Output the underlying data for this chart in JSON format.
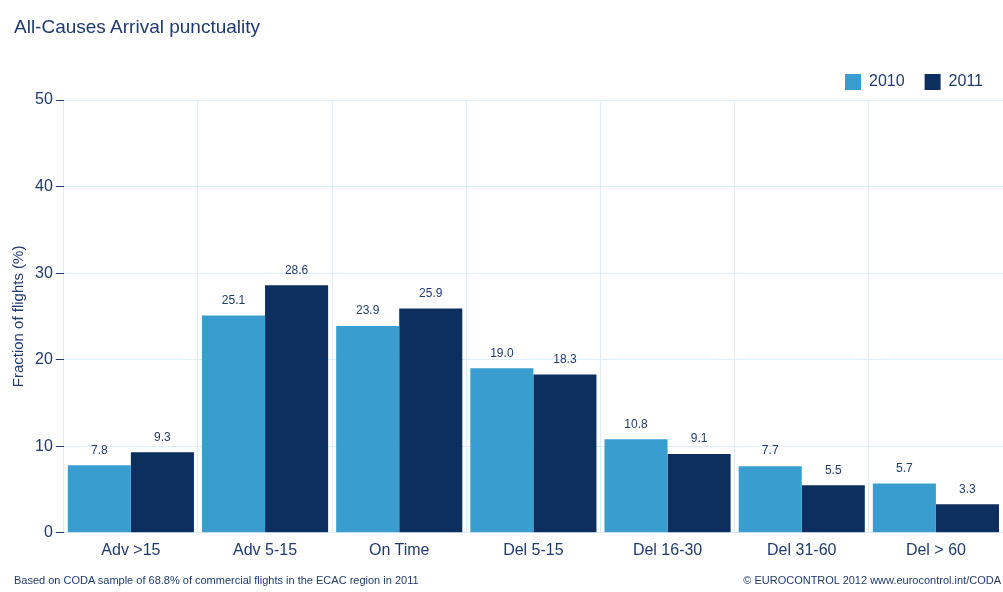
{
  "chart_data": {
    "type": "bar",
    "title": "All-Causes Arrival punctuality",
    "ylabel": "Fraction of flights (%)",
    "categories": [
      "Adv >15",
      "Adv 5-15",
      "On Time",
      "Del 5-15",
      "Del 16-30",
      "Del 31-60",
      "Del > 60"
    ],
    "series": [
      {
        "name": "2010",
        "color": "#3a9dd0",
        "values": [
          7.8,
          25.1,
          23.9,
          19.0,
          10.8,
          7.7,
          5.7
        ],
        "value_labels": [
          "7.8",
          "25.1",
          "23.9",
          "19.0",
          "10.8",
          "7.7",
          "5.7"
        ]
      },
      {
        "name": "2011",
        "color": "#0c2f5f",
        "values": [
          9.3,
          28.6,
          25.9,
          18.3,
          9.1,
          5.5,
          3.3
        ],
        "value_labels": [
          "9.3",
          "28.6",
          "25.9",
          "18.3",
          "9.1",
          "5.5",
          "3.3"
        ]
      }
    ],
    "ylim": [
      0,
      50
    ],
    "yticks": [
      0,
      10,
      20,
      30,
      40,
      50
    ],
    "grid": true,
    "legend": "top right",
    "annotations": [
      "Based on CODA sample of 68.8% of commercial flights in the ECAC region in 2011",
      "© EUROCONTROL 2012 www.eurocontrol.int/CODA"
    ]
  }
}
